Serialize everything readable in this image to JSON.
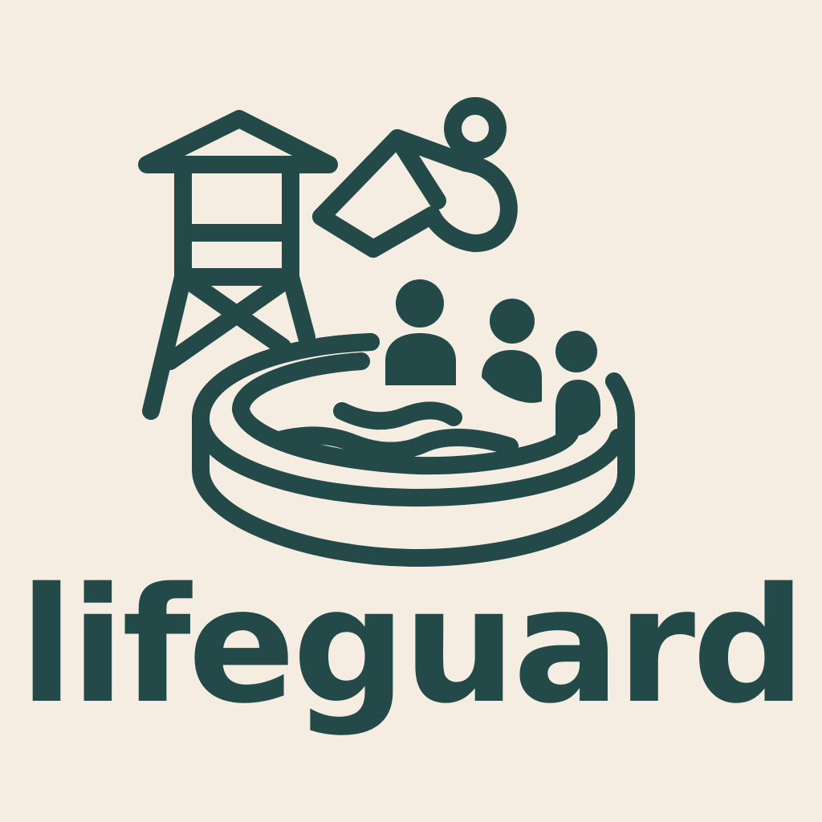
{
  "logo": {
    "wordmark": "lifeguard",
    "icons": [
      "lifeguard-tower-icon",
      "whistle-icon",
      "swimmers-icon",
      "pool-icon",
      "water-wave-icon"
    ]
  },
  "colors": {
    "background": "#f5ede2",
    "ink": "#234a49"
  }
}
